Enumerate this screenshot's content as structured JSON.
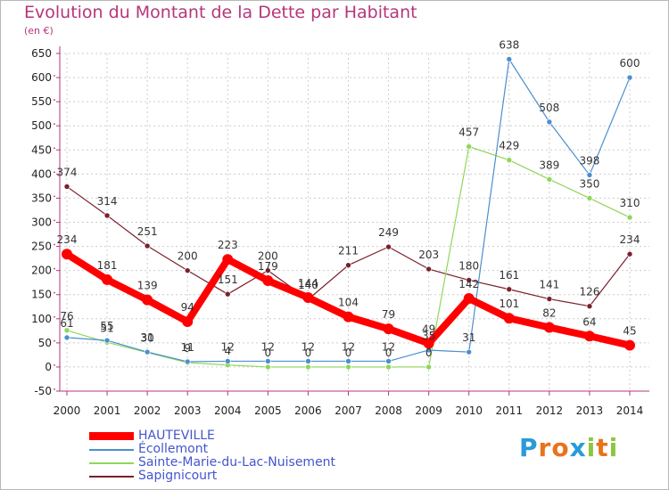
{
  "header": {
    "title": "Evolution du Montant de la Dette par Habitant",
    "unit": "(en €)"
  },
  "brand": {
    "letters": [
      "P",
      "r",
      "o",
      "x",
      "i",
      "t",
      "i"
    ],
    "colors": [
      "#2a9ad8",
      "#e8731b",
      "#e8731b",
      "#2a9ad8",
      "#8dc63f",
      "#e8731b",
      "#8dc63f"
    ]
  },
  "chart_data": {
    "type": "line",
    "x": [
      2000,
      2001,
      2002,
      2003,
      2004,
      2005,
      2006,
      2007,
      2008,
      2009,
      2010,
      2011,
      2012,
      2013,
      2014
    ],
    "ylim": [
      -50,
      650
    ],
    "yticks": [
      -50,
      0,
      50,
      100,
      150,
      200,
      250,
      300,
      350,
      400,
      450,
      500,
      550,
      600,
      650
    ],
    "grid": true,
    "legend_position": "bottom-left",
    "series": [
      {
        "name": "Sapignicourt",
        "color": "#7a1f2b",
        "values": [
          374,
          314,
          251,
          200,
          151,
          200,
          140,
          211,
          249,
          203,
          180,
          161,
          141,
          126,
          234
        ]
      },
      {
        "name": "Sainte-Marie-du-Lac-Nuisement",
        "color": "#8fd65a",
        "values": [
          76,
          51,
          30,
          9,
          4,
          0,
          0,
          0,
          0,
          0,
          457,
          429,
          389,
          350,
          310
        ]
      },
      {
        "name": "Écollemont",
        "color": "#4a8fcf",
        "values": [
          61,
          55,
          31,
          11,
          12,
          12,
          12,
          12,
          12,
          35,
          31,
          638,
          508,
          398,
          600
        ]
      },
      {
        "name": "HAUTEVILLE",
        "color": "#ff0000",
        "values": [
          234,
          181,
          139,
          94,
          223,
          179,
          144,
          104,
          79,
          49,
          142,
          101,
          82,
          64,
          45
        ]
      }
    ],
    "legend_order": [
      "HAUTEVILLE",
      "Écollemont",
      "Sainte-Marie-du-Lac-Nuisement",
      "Sapignicourt"
    ]
  }
}
